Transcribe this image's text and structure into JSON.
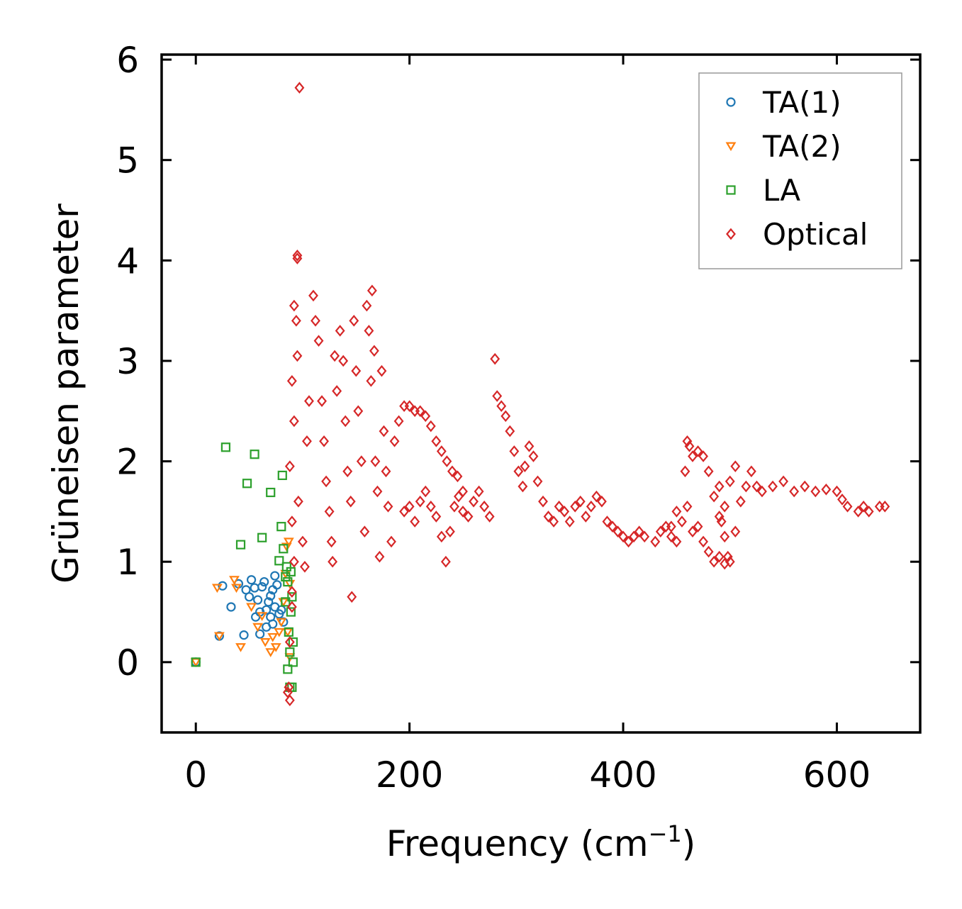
{
  "chart_data": {
    "type": "scatter",
    "title": "",
    "xlabel": "Frequency (cm",
    "xlabel_sup": "−1",
    "xlabel_close": ")",
    "ylabel": "Grüneisen parameter",
    "xlim": [
      -32,
      678
    ],
    "ylim": [
      -0.7,
      6.05
    ],
    "xticks": [
      0,
      200,
      400,
      600
    ],
    "yticks": [
      0,
      1,
      2,
      3,
      4,
      5,
      6
    ],
    "legend_position": "top-right",
    "series": [
      {
        "name": "TA(1)",
        "marker": "circle",
        "color": "#1f77b4",
        "points": [
          [
            0,
            0
          ],
          [
            22,
            0.26
          ],
          [
            25,
            0.76
          ],
          [
            33,
            0.55
          ],
          [
            40,
            0.78
          ],
          [
            45,
            0.27
          ],
          [
            47,
            0.72
          ],
          [
            50,
            0.65
          ],
          [
            52,
            0.82
          ],
          [
            55,
            0.74
          ],
          [
            58,
            0.62
          ],
          [
            60,
            0.5
          ],
          [
            60,
            0.28
          ],
          [
            62,
            0.75
          ],
          [
            64,
            0.8
          ],
          [
            66,
            0.52
          ],
          [
            68,
            0.6
          ],
          [
            70,
            0.45
          ],
          [
            72,
            0.72
          ],
          [
            72,
            0.38
          ],
          [
            74,
            0.86
          ],
          [
            74,
            0.55
          ],
          [
            76,
            0.77
          ],
          [
            78,
            0.48
          ],
          [
            80,
            0.52
          ],
          [
            82,
            0.4
          ],
          [
            70,
            0.66
          ],
          [
            66,
            0.35
          ],
          [
            56,
            0.45
          ]
        ]
      },
      {
        "name": "TA(2)",
        "marker": "triangle-down",
        "color": "#ff7f0e",
        "points": [
          [
            0,
            0
          ],
          [
            20,
            0.74
          ],
          [
            22,
            0.26
          ],
          [
            36,
            0.82
          ],
          [
            38,
            0.74
          ],
          [
            42,
            0.15
          ],
          [
            52,
            0.55
          ],
          [
            58,
            0.35
          ],
          [
            62,
            0.46
          ],
          [
            65,
            0.2
          ],
          [
            70,
            0.1
          ],
          [
            72,
            0.25
          ],
          [
            75,
            0.15
          ],
          [
            78,
            0.3
          ],
          [
            80,
            0.4
          ],
          [
            82,
            0.6
          ],
          [
            84,
            0.88
          ],
          [
            85,
            1.15
          ],
          [
            87,
            1.2
          ],
          [
            88,
            0.05
          ],
          [
            88,
            0.78
          ],
          [
            86,
            0.3
          ]
        ]
      },
      {
        "name": "LA",
        "marker": "square",
        "color": "#2ca02c",
        "points": [
          [
            0,
            0
          ],
          [
            28,
            2.14
          ],
          [
            42,
            1.17
          ],
          [
            48,
            1.78
          ],
          [
            55,
            2.07
          ],
          [
            62,
            1.24
          ],
          [
            70,
            1.69
          ],
          [
            78,
            1.01
          ],
          [
            80,
            1.35
          ],
          [
            81,
            1.86
          ],
          [
            82,
            1.13
          ],
          [
            84,
            0.6
          ],
          [
            85,
            0.95
          ],
          [
            86,
            0.8
          ],
          [
            86,
            -0.07
          ],
          [
            87,
            0.3
          ],
          [
            88,
            0.1
          ],
          [
            88,
            -0.25
          ],
          [
            89,
            0.9
          ],
          [
            89,
            0.5
          ],
          [
            90,
            0.65
          ],
          [
            90,
            -0.25
          ],
          [
            91,
            0.0
          ],
          [
            91,
            0.2
          ],
          [
            84,
            0.85
          ]
        ]
      },
      {
        "name": "Optical",
        "marker": "diamond",
        "color": "#d62728",
        "points": [
          [
            97,
            5.72
          ],
          [
            95,
            4.05
          ],
          [
            95,
            4.02
          ],
          [
            92,
            3.55
          ],
          [
            94,
            3.4
          ],
          [
            95,
            3.05
          ],
          [
            90,
            2.8
          ],
          [
            92,
            2.4
          ],
          [
            88,
            1.95
          ],
          [
            90,
            1.4
          ],
          [
            92,
            1.0
          ],
          [
            90,
            0.55
          ],
          [
            88,
            0.2
          ],
          [
            87,
            -0.25
          ],
          [
            86,
            -0.3
          ],
          [
            88,
            -0.38
          ],
          [
            90,
            0.7
          ],
          [
            96,
            1.6
          ],
          [
            100,
            1.2
          ],
          [
            102,
            0.95
          ],
          [
            104,
            2.2
          ],
          [
            106,
            2.6
          ],
          [
            110,
            3.65
          ],
          [
            112,
            3.4
          ],
          [
            115,
            3.2
          ],
          [
            118,
            2.6
          ],
          [
            120,
            2.2
          ],
          [
            122,
            1.8
          ],
          [
            125,
            1.5
          ],
          [
            127,
            1.2
          ],
          [
            128,
            1.0
          ],
          [
            130,
            3.05
          ],
          [
            132,
            2.7
          ],
          [
            135,
            3.3
          ],
          [
            138,
            3.0
          ],
          [
            140,
            2.4
          ],
          [
            142,
            1.9
          ],
          [
            145,
            1.6
          ],
          [
            146,
            0.65
          ],
          [
            148,
            3.4
          ],
          [
            150,
            2.9
          ],
          [
            152,
            2.5
          ],
          [
            155,
            2.0
          ],
          [
            158,
            1.3
          ],
          [
            160,
            3.55
          ],
          [
            162,
            3.3
          ],
          [
            164,
            2.8
          ],
          [
            165,
            3.7
          ],
          [
            167,
            3.1
          ],
          [
            168,
            2.0
          ],
          [
            170,
            1.7
          ],
          [
            172,
            1.05
          ],
          [
            174,
            2.9
          ],
          [
            176,
            2.3
          ],
          [
            178,
            1.9
          ],
          [
            180,
            1.55
          ],
          [
            183,
            1.2
          ],
          [
            186,
            2.2
          ],
          [
            190,
            2.4
          ],
          [
            195,
            2.55
          ],
          [
            200,
            2.55
          ],
          [
            205,
            2.5
          ],
          [
            210,
            2.5
          ],
          [
            215,
            2.45
          ],
          [
            220,
            2.35
          ],
          [
            225,
            2.2
          ],
          [
            230,
            2.1
          ],
          [
            235,
            2.0
          ],
          [
            240,
            1.9
          ],
          [
            245,
            1.85
          ],
          [
            250,
            1.7
          ],
          [
            195,
            1.5
          ],
          [
            200,
            1.55
          ],
          [
            205,
            1.4
          ],
          [
            210,
            1.6
          ],
          [
            215,
            1.7
          ],
          [
            220,
            1.55
          ],
          [
            225,
            1.45
          ],
          [
            230,
            1.25
          ],
          [
            234,
            1.0
          ],
          [
            238,
            1.3
          ],
          [
            242,
            1.55
          ],
          [
            246,
            1.65
          ],
          [
            250,
            1.5
          ],
          [
            255,
            1.45
          ],
          [
            260,
            1.6
          ],
          [
            265,
            1.7
          ],
          [
            270,
            1.55
          ],
          [
            275,
            1.45
          ],
          [
            280,
            3.02
          ],
          [
            282,
            2.65
          ],
          [
            286,
            2.55
          ],
          [
            290,
            2.45
          ],
          [
            294,
            2.3
          ],
          [
            298,
            2.1
          ],
          [
            302,
            1.9
          ],
          [
            306,
            1.75
          ],
          [
            308,
            1.95
          ],
          [
            312,
            2.15
          ],
          [
            316,
            2.05
          ],
          [
            320,
            1.8
          ],
          [
            325,
            1.6
          ],
          [
            330,
            1.45
          ],
          [
            335,
            1.4
          ],
          [
            340,
            1.55
          ],
          [
            345,
            1.5
          ],
          [
            350,
            1.4
          ],
          [
            355,
            1.55
          ],
          [
            360,
            1.6
          ],
          [
            365,
            1.45
          ],
          [
            370,
            1.55
          ],
          [
            375,
            1.65
          ],
          [
            380,
            1.6
          ],
          [
            385,
            1.4
          ],
          [
            390,
            1.35
          ],
          [
            395,
            1.3
          ],
          [
            400,
            1.25
          ],
          [
            405,
            1.2
          ],
          [
            410,
            1.25
          ],
          [
            415,
            1.3
          ],
          [
            420,
            1.25
          ],
          [
            430,
            1.2
          ],
          [
            435,
            1.3
          ],
          [
            440,
            1.35
          ],
          [
            445,
            1.25
          ],
          [
            450,
            1.2
          ],
          [
            455,
            1.4
          ],
          [
            458,
            1.9
          ],
          [
            460,
            2.2
          ],
          [
            462,
            2.15
          ],
          [
            465,
            2.05
          ],
          [
            470,
            2.1
          ],
          [
            475,
            2.05
          ],
          [
            480,
            1.9
          ],
          [
            485,
            1.65
          ],
          [
            490,
            1.45
          ],
          [
            495,
            1.25
          ],
          [
            498,
            1.05
          ],
          [
            500,
            1.0
          ],
          [
            505,
            1.3
          ],
          [
            510,
            1.6
          ],
          [
            515,
            1.75
          ],
          [
            520,
            1.9
          ],
          [
            525,
            1.75
          ],
          [
            530,
            1.7
          ],
          [
            540,
            1.75
          ],
          [
            550,
            1.8
          ],
          [
            560,
            1.7
          ],
          [
            570,
            1.75
          ],
          [
            580,
            1.7
          ],
          [
            590,
            1.72
          ],
          [
            600,
            1.7
          ],
          [
            605,
            1.62
          ],
          [
            610,
            1.55
          ],
          [
            620,
            1.5
          ],
          [
            625,
            1.55
          ],
          [
            630,
            1.5
          ],
          [
            640,
            1.55
          ],
          [
            645,
            1.55
          ],
          [
            470,
            1.35
          ],
          [
            475,
            1.2
          ],
          [
            480,
            1.1
          ],
          [
            485,
            1.0
          ],
          [
            490,
            1.05
          ],
          [
            495,
            0.98
          ],
          [
            460,
            1.55
          ],
          [
            465,
            1.3
          ],
          [
            450,
            1.5
          ],
          [
            445,
            1.35
          ],
          [
            490,
            1.75
          ],
          [
            492,
            1.4
          ],
          [
            495,
            1.55
          ],
          [
            500,
            1.8
          ],
          [
            505,
            1.95
          ]
        ]
      }
    ]
  }
}
